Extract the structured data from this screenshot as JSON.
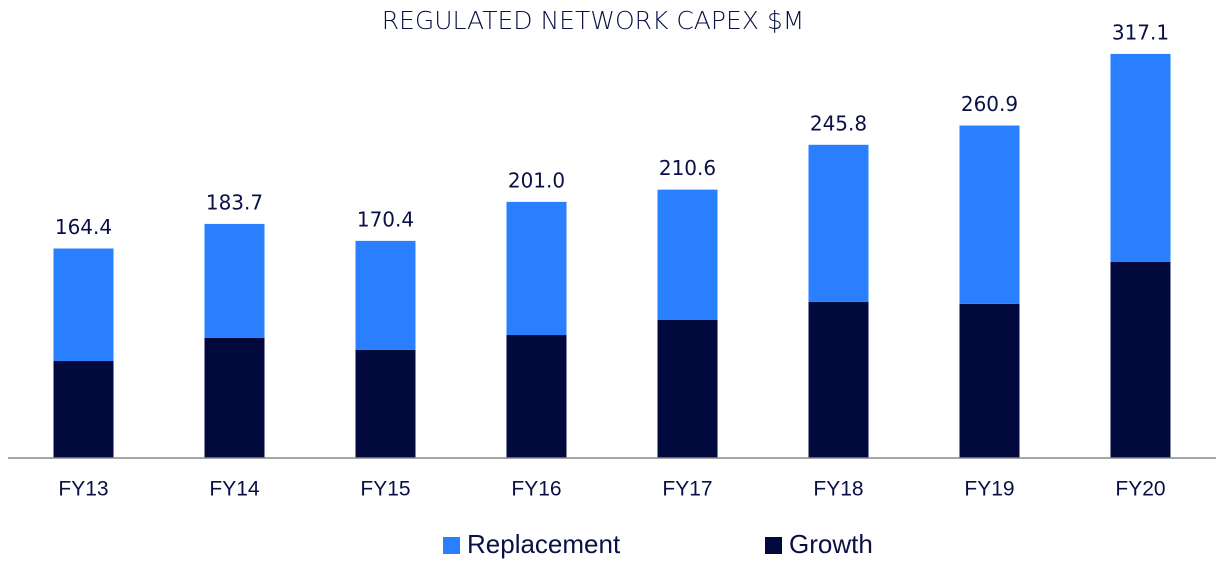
{
  "chart_data": {
    "type": "stacked_bar",
    "title": "REGULATED NETWORK CAPEX $M",
    "categories": [
      "FY13",
      "FY14",
      "FY15",
      "FY16",
      "FY17",
      "FY18",
      "FY19",
      "FY20"
    ],
    "series": [
      {
        "name": "Growth",
        "color": "#020a3d",
        "values": [
          76.1,
          94.2,
          84.8,
          96.5,
          108.3,
          122.4,
          120.9,
          153.8
        ]
      },
      {
        "name": "Replacement",
        "color": "#2a7fff",
        "values": [
          88.3,
          89.5,
          85.6,
          104.5,
          102.3,
          123.4,
          140.0,
          163.3
        ]
      }
    ],
    "totals": [
      164.4,
      183.7,
      170.4,
      "201.0",
      210.6,
      245.8,
      260.9,
      317.1
    ],
    "ylim": [
      0,
      350
    ],
    "legend": "bottom"
  }
}
